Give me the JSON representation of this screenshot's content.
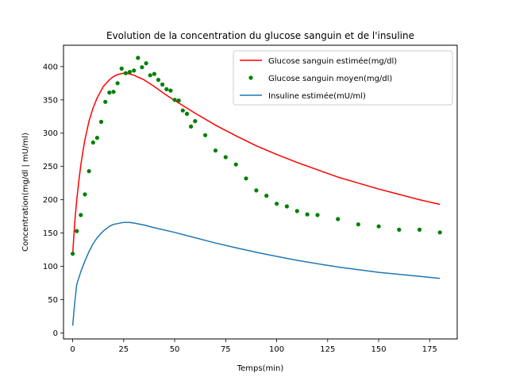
{
  "chart_data": {
    "type": "line",
    "title": "Evolution de la concentration du glucose sanguin et de l'insuline",
    "xlabel": "Temps(min)",
    "ylabel": "Concentration(mg/dl | mU/ml)",
    "xlim": [
      -4.5,
      188.5
    ],
    "ylim": [
      -9,
      432
    ],
    "xticks": [
      0,
      25,
      50,
      75,
      100,
      125,
      150,
      175
    ],
    "yticks": [
      0,
      50,
      100,
      150,
      200,
      250,
      300,
      350,
      400
    ],
    "grid": false,
    "legend_position": "top-right",
    "series": [
      {
        "name": "Glucose sanguin estimée(mg/dl)",
        "kind": "line",
        "color": "#ff0000",
        "x": [
          0,
          1,
          2,
          3,
          4,
          5,
          6,
          8,
          10,
          12,
          15,
          18,
          20,
          22,
          25,
          28,
          30,
          35,
          40,
          45,
          50,
          60,
          70,
          80,
          90,
          100,
          110,
          120,
          130,
          140,
          150,
          160,
          170,
          180
        ],
        "y": [
          119,
          165,
          200,
          228,
          252,
          272,
          290,
          318,
          338,
          353,
          370,
          380,
          385,
          388,
          390,
          389,
          387,
          380,
          370,
          359,
          349,
          330,
          312,
          296,
          281,
          268,
          256,
          245,
          234,
          225,
          216,
          208,
          200,
          193
        ]
      },
      {
        "name": "Glucose sanguin moyen(mg/dl)",
        "kind": "scatter",
        "color": "#008000",
        "x": [
          0,
          2,
          4,
          6,
          8,
          10,
          12,
          14,
          16,
          18,
          20,
          22,
          24,
          26,
          28,
          30,
          32,
          34,
          36,
          38,
          40,
          42,
          44,
          46,
          48,
          50,
          52,
          54,
          56,
          58,
          60,
          65,
          70,
          75,
          80,
          85,
          90,
          95,
          100,
          105,
          110,
          115,
          120,
          130,
          140,
          150,
          160,
          170,
          180
        ],
        "y": [
          119,
          153,
          177,
          208,
          243,
          286,
          293,
          317,
          347,
          361,
          362,
          375,
          397,
          390,
          392,
          394,
          413,
          399,
          405,
          387,
          389,
          380,
          373,
          366,
          364,
          350,
          349,
          334,
          329,
          310,
          318,
          297,
          274,
          264,
          253,
          232,
          214,
          206,
          194,
          190,
          183,
          178,
          177,
          171,
          163,
          160,
          155,
          155,
          151
        ]
      },
      {
        "name": "Insuline estimée(mU/ml)",
        "kind": "line",
        "color": "#1f77b4",
        "x": [
          0,
          1,
          2,
          4,
          6,
          8,
          10,
          12,
          15,
          18,
          20,
          25,
          28,
          30,
          35,
          40,
          50,
          60,
          70,
          80,
          90,
          100,
          110,
          120,
          130,
          140,
          150,
          160,
          170,
          180
        ],
        "y": [
          11,
          45,
          73,
          92,
          108,
          122,
          134,
          143,
          153,
          160,
          163,
          166,
          166,
          165,
          162,
          158,
          151,
          143,
          135,
          128,
          121,
          115,
          109,
          104,
          99,
          95,
          91,
          88,
          85,
          82
        ]
      }
    ]
  }
}
